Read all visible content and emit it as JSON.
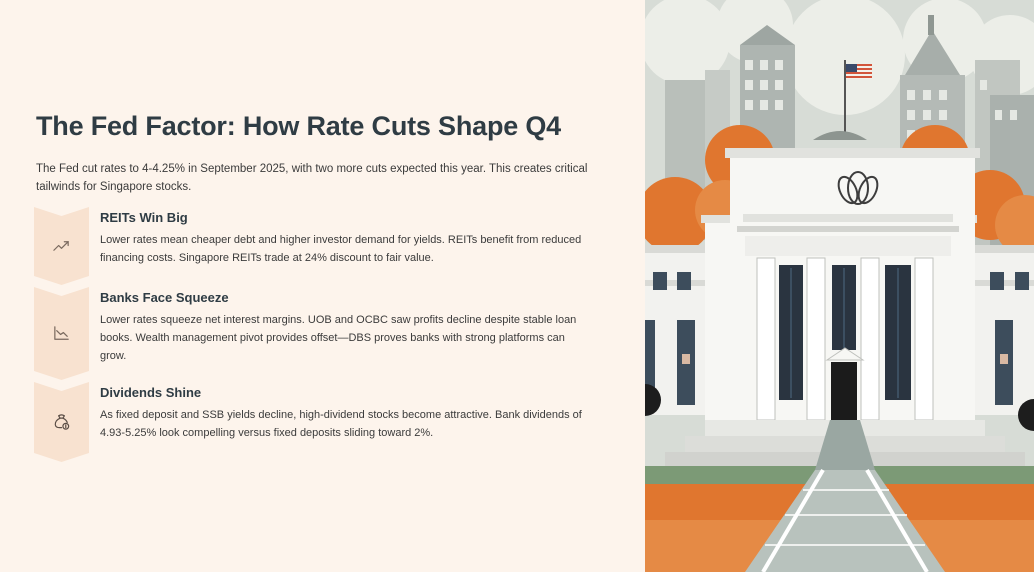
{
  "slide": {
    "title": "The Fed Factor: How Rate Cuts Shape Q4",
    "intro": "The Fed cut rates to 4-4.25% in September 2025, with two more cuts expected this year. This creates critical tailwinds for Singapore stocks."
  },
  "items": [
    {
      "title": "REITs Win Big",
      "body": "Lower rates mean cheaper debt and higher investor demand for yields. REITs benefit from reduced financing costs. Singapore REITs trade at 24% discount to fair value.",
      "icon": "trend-up-icon"
    },
    {
      "title": "Banks Face Squeeze",
      "body": "Lower rates squeeze net interest margins. UOB and OCBC saw profits decline despite stable loan books. Wealth management pivot provides offset—DBS proves banks with strong platforms can grow.",
      "icon": "trend-down-icon"
    },
    {
      "title": "Dividends Shine",
      "body": "As fixed deposit and SSB yields decline, high-dividend stocks become attractive. Bank dividends of 4.93-5.25% look compelling versus fixed deposits sliding toward 2%.",
      "icon": "money-bag-icon"
    }
  ],
  "colors": {
    "background": "#fdf4ec",
    "badge": "#f8e2d0",
    "heading": "#2f3c44",
    "body_text": "#3b3b3b",
    "accent_orange": "#e0762f"
  },
  "illustration": {
    "subject": "federal-reserve-building-illustration",
    "flag": "us-flag"
  }
}
